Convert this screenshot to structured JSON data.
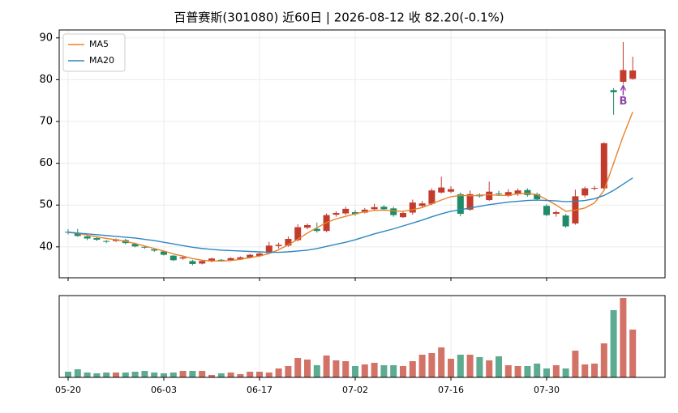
{
  "chart_data": {
    "type": "candlestick",
    "title": "百普赛斯(301080) 近60日  |  2026-08-12 收 82.20(-0.1%)",
    "categories": [
      "05-20",
      null,
      null,
      null,
      null,
      null,
      null,
      null,
      null,
      null,
      "06-03",
      null,
      null,
      null,
      null,
      null,
      null,
      null,
      null,
      null,
      "06-17",
      null,
      null,
      null,
      null,
      null,
      null,
      null,
      null,
      null,
      "07-02",
      null,
      null,
      null,
      null,
      null,
      null,
      null,
      null,
      null,
      "07-16",
      null,
      null,
      null,
      null,
      null,
      null,
      null,
      null,
      null,
      "07-30",
      null,
      null,
      null,
      null,
      null,
      null,
      null,
      null,
      null
    ],
    "open": [
      43.6,
      43.3,
      42.5,
      42.1,
      41.4,
      41.4,
      41.6,
      40.7,
      40.0,
      39.4,
      38.9,
      37.9,
      37.2,
      36.6,
      36.0,
      36.5,
      36.9,
      36.8,
      37.0,
      37.4,
      37.8,
      38.5,
      40.2,
      40.3,
      41.6,
      44.6,
      44.3,
      43.8,
      47.7,
      48.0,
      48.3,
      48.2,
      49.0,
      49.6,
      49.2,
      47.1,
      48.2,
      49.8,
      50.3,
      53.0,
      53.2,
      52.6,
      48.9,
      52.5,
      51.2,
      52.8,
      52.2,
      52.7,
      53.6,
      52.6,
      49.8,
      47.9,
      47.5,
      45.6,
      52.3,
      54.0,
      54.0,
      77.5,
      79.5,
      80.2
    ],
    "high": [
      44.2,
      44.3,
      42.8,
      42.4,
      41.6,
      42.0,
      41.9,
      41.0,
      40.3,
      39.6,
      39.1,
      38.0,
      37.8,
      36.9,
      36.8,
      37.4,
      37.1,
      37.5,
      37.7,
      38.3,
      38.8,
      41.2,
      41.0,
      42.5,
      45.4,
      45.6,
      45.8,
      48.0,
      48.5,
      49.6,
      48.8,
      49.3,
      50.3,
      50.0,
      49.6,
      48.6,
      51.3,
      51.0,
      54.0,
      56.8,
      54.5,
      53.0,
      53.5,
      52.8,
      55.6,
      53.4,
      53.8,
      54.0,
      54.0,
      53.0,
      50.2,
      48.7,
      47.9,
      53.7,
      54.4,
      54.6,
      65.0,
      78.0,
      89.0,
      85.5
    ],
    "low": [
      43.0,
      42.4,
      41.6,
      41.4,
      40.9,
      41.2,
      40.6,
      39.9,
      39.5,
      38.8,
      37.9,
      36.6,
      36.9,
      35.6,
      35.8,
      36.3,
      36.5,
      36.6,
      36.9,
      37.2,
      37.6,
      38.3,
      39.6,
      40.0,
      41.3,
      44.2,
      43.4,
      43.5,
      47.2,
      47.6,
      47.4,
      48.0,
      48.6,
      48.6,
      47.2,
      46.9,
      47.7,
      49.5,
      50.0,
      52.8,
      52.9,
      47.3,
      48.6,
      51.8,
      51.0,
      52.2,
      51.9,
      52.2,
      52.0,
      51.1,
      47.3,
      47.2,
      44.6,
      45.3,
      51.8,
      53.5,
      53.6,
      71.6,
      79.0,
      80.0
    ],
    "close": [
      43.4,
      42.6,
      42.0,
      41.7,
      41.2,
      41.8,
      40.9,
      40.1,
      39.8,
      39.1,
      38.1,
      36.8,
      37.5,
      35.9,
      36.6,
      37.2,
      36.8,
      37.3,
      37.5,
      38.1,
      38.4,
      40.3,
      40.5,
      41.9,
      44.7,
      45.2,
      43.8,
      47.6,
      48.1,
      49.1,
      47.8,
      48.9,
      49.5,
      49.0,
      47.6,
      48.1,
      50.6,
      50.4,
      53.5,
      54.2,
      53.8,
      47.9,
      52.6,
      52.1,
      53.2,
      52.6,
      53.1,
      53.5,
      52.4,
      51.4,
      47.6,
      48.3,
      44.9,
      52.1,
      54.0,
      54.1,
      64.8,
      77.0,
      82.3,
      82.2
    ],
    "up_color": "#c23b2c",
    "down_color": "#1e8c66",
    "series": [
      {
        "name": "MA5",
        "color": "#e8832a",
        "values": [
          43.5,
          43.2,
          42.8,
          42.4,
          42.0,
          41.7,
          41.3,
          40.8,
          40.2,
          39.6,
          39.0,
          38.3,
          37.8,
          37.2,
          36.8,
          36.6,
          36.6,
          36.7,
          37.0,
          37.4,
          37.8,
          38.4,
          39.3,
          40.5,
          41.8,
          43.3,
          44.6,
          45.8,
          46.7,
          47.3,
          47.9,
          48.4,
          48.7,
          48.8,
          48.6,
          48.5,
          48.9,
          49.4,
          50.3,
          51.2,
          52.0,
          52.3,
          52.2,
          52.3,
          52.5,
          52.3,
          52.3,
          52.7,
          52.8,
          52.5,
          51.3,
          50.0,
          48.5,
          48.8,
          49.3,
          50.5,
          53.5,
          60.0,
          66.5,
          72.3
        ]
      },
      {
        "name": "MA20",
        "color": "#2e86c1",
        "values": [
          43.5,
          43.3,
          43.1,
          42.9,
          42.7,
          42.5,
          42.3,
          42.1,
          41.8,
          41.5,
          41.1,
          40.7,
          40.3,
          39.9,
          39.6,
          39.4,
          39.2,
          39.1,
          39.0,
          38.9,
          38.8,
          38.7,
          38.7,
          38.8,
          39.0,
          39.2,
          39.6,
          40.1,
          40.6,
          41.1,
          41.7,
          42.4,
          43.1,
          43.7,
          44.3,
          45.0,
          45.7,
          46.4,
          47.2,
          47.9,
          48.5,
          48.9,
          49.3,
          49.7,
          50.1,
          50.4,
          50.7,
          50.9,
          51.1,
          51.2,
          51.1,
          51.0,
          50.8,
          50.9,
          51.1,
          51.5,
          52.3,
          53.5,
          55.0,
          56.5
        ]
      }
    ],
    "volume": [
      7,
      10,
      6,
      5,
      6,
      6,
      6,
      7,
      8,
      6,
      5,
      6,
      8,
      8,
      8,
      3,
      5,
      6,
      4,
      7,
      7,
      6,
      11,
      14,
      24,
      22,
      15,
      27,
      21,
      20,
      14,
      16,
      18,
      15,
      15,
      14,
      20,
      28,
      30,
      37,
      23,
      28,
      28,
      25,
      21,
      26,
      15,
      14,
      14,
      17,
      11,
      15,
      11,
      33,
      16,
      17,
      42,
      83,
      98,
      59
    ],
    "volume_ylim": [
      0,
      101
    ],
    "annotation": "B",
    "annotation_color": "#8e44ad",
    "ylim": [
      32.6,
      91.9
    ],
    "yticks": [
      40,
      50,
      60,
      70,
      80,
      90
    ],
    "grid": true,
    "legend": "upper left"
  }
}
